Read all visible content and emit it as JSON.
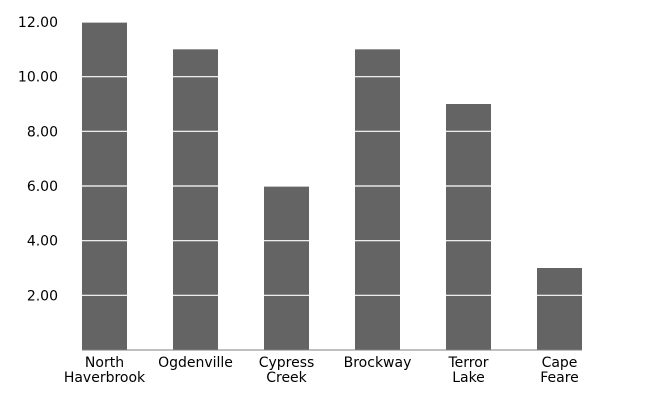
{
  "chart_data": {
    "type": "bar",
    "title": "",
    "xlabel": "",
    "ylabel": "",
    "categories": [
      [
        "North",
        "Haverbrook"
      ],
      [
        "Ogdenville"
      ],
      [
        "Cypress",
        "Creek"
      ],
      [
        "Brockway"
      ],
      [
        "Terror",
        "Lake"
      ],
      [
        "Cape",
        "Feare"
      ]
    ],
    "values": [
      12,
      11,
      6,
      11,
      9,
      3
    ],
    "ylim": [
      0,
      12
    ],
    "yticks": [
      2,
      4,
      6,
      8,
      10,
      12
    ],
    "ytick_labels": [
      "2.00",
      "4.00",
      "6.00",
      "8.00",
      "10.00",
      "12.00"
    ],
    "grid": "horizontal white lines over bars",
    "legend": "none",
    "colors": {
      "bar": "#646464",
      "gridline": "#ffffff",
      "axis": "#808080"
    }
  }
}
